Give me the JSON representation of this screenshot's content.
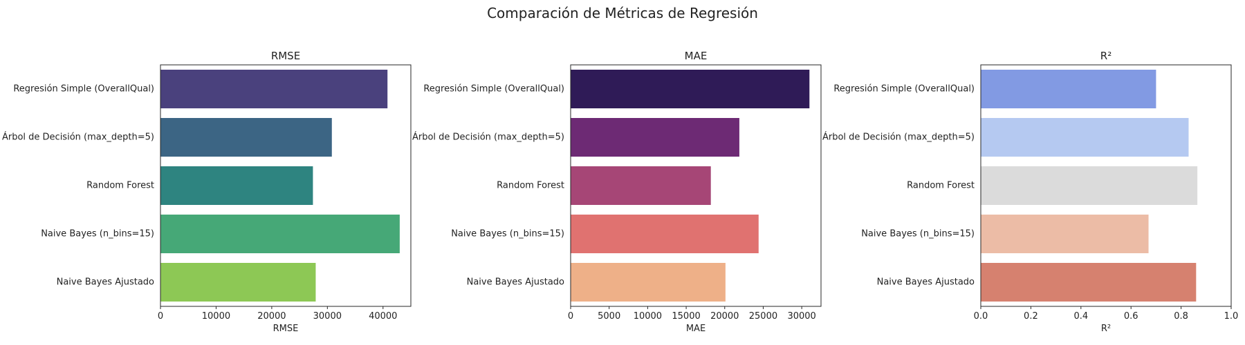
{
  "figure": {
    "suptitle": "Comparación de Métricas de Regresión"
  },
  "chart_data": [
    {
      "type": "bar",
      "orientation": "horizontal",
      "title": "RMSE",
      "xlabel": "RMSE",
      "ylabel": "",
      "categories": [
        "Regresión Simple (OverallQual)",
        "Árbol de Decisión (max_depth=5)",
        "Random Forest",
        "Naive Bayes (n_bins=15)",
        "Naive Bayes Ajustado"
      ],
      "values": [
        40800,
        30800,
        27400,
        43000,
        27900
      ],
      "xlim": [
        0,
        45000
      ],
      "xticks": [
        0,
        10000,
        20000,
        30000,
        40000
      ],
      "tick_labels": [
        "0",
        "10000",
        "20000",
        "30000",
        "40000"
      ],
      "colors": [
        "#4a417d",
        "#3c6584",
        "#2e8480",
        "#46a877",
        "#8dc855"
      ],
      "grid": false
    },
    {
      "type": "bar",
      "orientation": "horizontal",
      "title": "MAE",
      "xlabel": "MAE",
      "ylabel": "",
      "categories": [
        "Regresión Simple (OverallQual)",
        "Árbol de Decisión (max_depth=5)",
        "Random Forest",
        "Naive Bayes (n_bins=15)",
        "Naive Bayes Ajustado"
      ],
      "values": [
        31000,
        21900,
        18200,
        24400,
        20100
      ],
      "xlim": [
        0,
        32500
      ],
      "xticks": [
        0,
        5000,
        10000,
        15000,
        20000,
        25000,
        30000
      ],
      "tick_labels": [
        "0",
        "5000",
        "10000",
        "15000",
        "20000",
        "25000",
        "30000"
      ],
      "colors": [
        "#2f1b57",
        "#6d2a74",
        "#a64676",
        "#e07270",
        "#eeb088"
      ],
      "grid": false
    },
    {
      "type": "bar",
      "orientation": "horizontal",
      "title": "R²",
      "xlabel": "R²",
      "ylabel": "",
      "categories": [
        "Regresión Simple (OverallQual)",
        "Árbol de Decisión (max_depth=5)",
        "Random Forest",
        "Naive Bayes (n_bins=15)",
        "Naive Bayes Ajustado"
      ],
      "values": [
        0.7,
        0.83,
        0.865,
        0.67,
        0.86
      ],
      "xlim": [
        0,
        1
      ],
      "xticks": [
        0,
        0.2,
        0.4,
        0.6,
        0.8,
        1.0
      ],
      "tick_labels": [
        "0.0",
        "0.2",
        "0.4",
        "0.6",
        "0.8",
        "1.0"
      ],
      "colors": [
        "#829ae3",
        "#b5c9f1",
        "#dbdbdb",
        "#ecbca6",
        "#d6816f"
      ],
      "grid": false
    }
  ]
}
